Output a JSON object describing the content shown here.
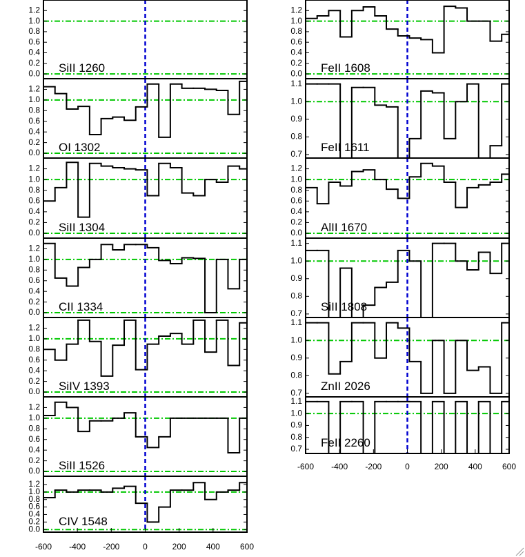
{
  "chart_data": [
    {
      "type": "line",
      "drawstyle": "steps-mid",
      "label": "SiII 1260",
      "color": "#000000",
      "x": [],
      "values": [],
      "xlim": [
        -600,
        600
      ],
      "ylim": [
        -0.09,
        1.4
      ],
      "yticks": [
        {
          "value": 0,
          "label": "0.0"
        },
        0.2,
        0.4,
        0.6,
        0.8,
        {
          "value": 1,
          "label": "1.0"
        },
        1.2
      ],
      "hlines": [
        0,
        1
      ],
      "vline": 0
    },
    {
      "type": "line",
      "drawstyle": "steps-mid",
      "label": "OI 1302",
      "color": "#000000",
      "x": [
        -566,
        -498,
        -430,
        -362,
        -294,
        -226,
        -158,
        -90,
        -22,
        46,
        114,
        182,
        250,
        318,
        386,
        454,
        522,
        590
      ],
      "values": [
        1.25,
        1.12,
        0.83,
        0.88,
        0.35,
        0.65,
        0.68,
        0.62,
        0.87,
        1.3,
        0.3,
        1.3,
        1.22,
        1.22,
        1.2,
        1.18,
        0.73,
        1.35
      ],
      "xlim": [
        -600,
        600
      ],
      "ylim": [
        -0.09,
        1.4
      ],
      "yticks": [
        {
          "value": 0,
          "label": "0.0"
        },
        0.2,
        0.4,
        0.6,
        0.8,
        {
          "value": 1,
          "label": "1.0"
        },
        1.2
      ],
      "hlines": [
        0,
        1
      ],
      "vline": 0
    },
    {
      "type": "line",
      "drawstyle": "steps-mid",
      "label": "SiII 1304",
      "color": "#000000",
      "x": [
        -566,
        -498,
        -430,
        -362,
        -294,
        -226,
        -158,
        -90,
        -22,
        46,
        114,
        182,
        250,
        318,
        386,
        454,
        522,
        590
      ],
      "values": [
        0.6,
        0.85,
        1.32,
        0.3,
        1.3,
        1.25,
        1.22,
        1.2,
        1.18,
        0.7,
        1.3,
        1.22,
        0.75,
        0.7,
        1.0,
        0.95,
        1.25,
        1.2
      ],
      "xlim": [
        -600,
        600
      ],
      "ylim": [
        -0.09,
        1.4
      ],
      "yticks": [
        {
          "value": 0,
          "label": "0.0"
        },
        0.2,
        0.4,
        0.6,
        0.8,
        {
          "value": 1,
          "label": "1.0"
        },
        1.2
      ],
      "hlines": [
        0,
        1
      ],
      "vline": 0
    },
    {
      "type": "line",
      "drawstyle": "steps-mid",
      "label": "CII 1334",
      "color": "#000000",
      "x": [
        -566,
        -498,
        -430,
        -362,
        -294,
        -226,
        -158,
        -90,
        -22,
        46,
        114,
        182,
        250,
        318,
        386,
        454,
        522,
        590
      ],
      "values": [
        1.3,
        0.65,
        0.5,
        0.85,
        1.0,
        1.28,
        1.18,
        1.28,
        1.28,
        1.22,
        0.98,
        0.92,
        1.03,
        1.02,
        0.0,
        1.0,
        0.45,
        1.0
      ],
      "xlim": [
        -600,
        600
      ],
      "ylim": [
        -0.09,
        1.4
      ],
      "yticks": [
        {
          "value": 0,
          "label": "0.0"
        },
        0.2,
        0.4,
        0.6,
        0.8,
        {
          "value": 1,
          "label": "1.0"
        },
        1.2
      ],
      "hlines": [
        0,
        1
      ],
      "vline": 0
    },
    {
      "type": "line",
      "drawstyle": "steps-mid",
      "label": "SiIV 1393",
      "color": "#000000",
      "x": [
        -566,
        -498,
        -430,
        -362,
        -294,
        -226,
        -158,
        -90,
        -22,
        46,
        114,
        182,
        250,
        318,
        386,
        454,
        522,
        590
      ],
      "values": [
        0.8,
        0.6,
        0.9,
        1.35,
        0.95,
        0.3,
        0.88,
        1.35,
        0.42,
        0.9,
        1.05,
        1.1,
        0.9,
        1.35,
        0.75,
        1.35,
        0.5,
        1.3
      ],
      "xlim": [
        -600,
        600
      ],
      "ylim": [
        -0.09,
        1.4
      ],
      "yticks": [
        {
          "value": 0,
          "label": "0.0"
        },
        0.2,
        0.4,
        0.6,
        0.8,
        {
          "value": 1,
          "label": "1.0"
        },
        1.2
      ],
      "hlines": [
        0,
        1
      ],
      "vline": 0
    },
    {
      "type": "line",
      "drawstyle": "steps-mid",
      "label": "SiII 1526",
      "color": "#000000",
      "x": [
        -566,
        -498,
        -430,
        -362,
        -294,
        -226,
        -158,
        -90,
        -22,
        46,
        114,
        182,
        250,
        318,
        386,
        454,
        522,
        590
      ],
      "values": [
        1.05,
        1.3,
        1.2,
        0.75,
        0.95,
        0.95,
        1.0,
        1.1,
        0.65,
        0.45,
        0.65,
        1.0,
        1.0,
        1.0,
        1.0,
        1.0,
        0.35,
        1.0
      ],
      "xlim": [
        -600,
        600
      ],
      "ylim": [
        -0.09,
        1.4
      ],
      "yticks": [
        {
          "value": 0,
          "label": "0.0"
        },
        0.2,
        0.4,
        0.6,
        0.8,
        {
          "value": 1,
          "label": "1.0"
        },
        1.2
      ],
      "hlines": [
        0,
        1
      ],
      "vline": 0
    },
    {
      "type": "line",
      "drawstyle": "steps-mid",
      "label": "CIV 1548",
      "color": "#000000",
      "x": [
        -566,
        -498,
        -430,
        -362,
        -294,
        -226,
        -158,
        -90,
        -22,
        46,
        114,
        182,
        250,
        318,
        386,
        454,
        522,
        590
      ],
      "values": [
        0.85,
        1.05,
        1.0,
        1.05,
        1.05,
        1.0,
        1.1,
        1.15,
        0.7,
        0.2,
        0.6,
        1.05,
        1.05,
        1.25,
        0.8,
        1.0,
        1.05,
        1.25
      ],
      "xlim": [
        -600,
        600
      ],
      "ylim": [
        -0.07,
        1.42
      ],
      "yticks": [
        {
          "value": 0,
          "label": "0.0"
        },
        0.2,
        0.4,
        0.6,
        0.8,
        {
          "value": 1,
          "label": "1.0"
        },
        1.2
      ],
      "hlines": [
        0,
        1
      ],
      "vline": 0,
      "xticks": [
        -600,
        -400,
        -200,
        0,
        200,
        400,
        600
      ]
    },
    {
      "type": "line",
      "drawstyle": "steps-mid",
      "label": "FeII 1608",
      "color": "#000000",
      "x": [
        -566,
        -498,
        -430,
        -362,
        -294,
        -226,
        -158,
        -90,
        -22,
        46,
        114,
        182,
        250,
        318,
        386,
        454,
        522,
        590
      ],
      "values": [
        1.05,
        1.1,
        1.2,
        0.7,
        1.2,
        1.27,
        1.1,
        0.85,
        0.72,
        0.68,
        0.65,
        0.4,
        1.28,
        1.25,
        1.0,
        1.0,
        0.62,
        0.75
      ],
      "xlim": [
        -600,
        600
      ],
      "ylim": [
        -0.09,
        1.4
      ],
      "yticks": [
        {
          "value": 0,
          "label": "0.0"
        },
        0.2,
        0.4,
        0.6,
        0.8,
        {
          "value": 1,
          "label": "1.0"
        },
        1.2
      ],
      "hlines": [
        0,
        1
      ],
      "vline": 0
    },
    {
      "type": "line",
      "drawstyle": "steps-mid",
      "label": "FeII 1611",
      "color": "#000000",
      "x": [
        -566,
        -498,
        -430,
        -362,
        -294,
        -226,
        -158,
        -90,
        -22,
        46,
        114,
        182,
        250,
        318,
        386,
        454,
        522,
        590
      ],
      "values": [
        1.1,
        1.1,
        1.1,
        0.68,
        1.08,
        1.08,
        0.98,
        0.97,
        0.68,
        0.79,
        1.06,
        1.05,
        0.79,
        1.0,
        1.1,
        0.68,
        0.75,
        1.1
      ],
      "xlim": [
        -600,
        600
      ],
      "ylim": [
        0.68,
        1.13
      ],
      "yticks": [
        0.7,
        0.8,
        0.9,
        {
          "value": 1,
          "label": "1.0"
        },
        1.1
      ],
      "hlines": [
        1
      ],
      "vline": 0
    },
    {
      "type": "line",
      "drawstyle": "steps-mid",
      "label": "AlII 1670",
      "color": "#000000",
      "x": [
        -566,
        -498,
        -430,
        -362,
        -294,
        -226,
        -158,
        -90,
        -22,
        46,
        114,
        182,
        250,
        318,
        386,
        454,
        522,
        590
      ],
      "values": [
        0.85,
        0.55,
        0.95,
        0.88,
        1.15,
        1.18,
        1.0,
        0.82,
        0.65,
        1.05,
        1.3,
        1.25,
        0.95,
        0.48,
        0.85,
        0.9,
        0.95,
        1.1
      ],
      "xlim": [
        -600,
        600
      ],
      "ylim": [
        -0.09,
        1.4
      ],
      "yticks": [
        {
          "value": 0,
          "label": "0.0"
        },
        0.2,
        0.4,
        0.6,
        0.8,
        {
          "value": 1,
          "label": "1.0"
        },
        1.2
      ],
      "hlines": [
        0,
        1
      ],
      "vline": 0
    },
    {
      "type": "line",
      "drawstyle": "steps-mid",
      "label": "SiII 1808",
      "color": "#000000",
      "x": [
        -566,
        -498,
        -430,
        -362,
        -294,
        -226,
        -158,
        -90,
        -22,
        46,
        114,
        182,
        250,
        318,
        386,
        454,
        522,
        590
      ],
      "values": [
        1.06,
        1.06,
        0.68,
        0.96,
        0.68,
        0.75,
        0.85,
        0.88,
        1.06,
        1.0,
        0.68,
        1.1,
        1.1,
        1.0,
        0.95,
        1.05,
        0.93,
        1.1
      ],
      "xlim": [
        -600,
        600
      ],
      "ylim": [
        0.68,
        1.13
      ],
      "yticks": [
        0.7,
        0.8,
        0.9,
        {
          "value": 1,
          "label": "1.0"
        },
        1.1
      ],
      "hlines": [
        1
      ],
      "vline": 0
    },
    {
      "type": "line",
      "drawstyle": "steps-mid",
      "label": "ZnII 2026",
      "color": "#000000",
      "x": [
        -566,
        -498,
        -430,
        -362,
        -294,
        -226,
        -158,
        -90,
        -22,
        46,
        114,
        182,
        250,
        318,
        386,
        454,
        522,
        590
      ],
      "values": [
        1.1,
        1.1,
        0.81,
        0.88,
        1.1,
        1.1,
        0.9,
        1.1,
        1.07,
        0.88,
        0.7,
        1.0,
        0.7,
        1.0,
        0.83,
        0.85,
        0.7,
        1.1
      ],
      "xlim": [
        -600,
        600
      ],
      "ylim": [
        0.68,
        1.13
      ],
      "yticks": [
        0.7,
        0.8,
        0.9,
        {
          "value": 1,
          "label": "1.0"
        },
        1.1
      ],
      "hlines": [
        1
      ],
      "vline": 0
    },
    {
      "type": "line",
      "drawstyle": "steps-mid",
      "label": "FeII 2260",
      "color": "#000000",
      "x": [
        -566,
        -498,
        -430,
        -362,
        -294,
        -226,
        -158,
        -90,
        -22,
        46,
        114,
        182,
        250,
        318,
        386,
        454,
        522,
        590
      ],
      "values": [
        1.1,
        1.1,
        0.6,
        1.1,
        1.1,
        0.6,
        1.1,
        1.1,
        1.1,
        1.1,
        0.6,
        1.1,
        0.6,
        1.1,
        0.6,
        1.1,
        0.6,
        1.1
      ],
      "xlim": [
        -600,
        600
      ],
      "ylim": [
        0.665,
        1.14
      ],
      "yticks": [
        0.7,
        0.8,
        0.9,
        {
          "value": 1,
          "label": "1.0"
        },
        1.1
      ],
      "hlines": [
        1
      ],
      "vline": 0,
      "xticks": [
        -600,
        -400,
        -200,
        0,
        200,
        400,
        600
      ]
    }
  ]
}
